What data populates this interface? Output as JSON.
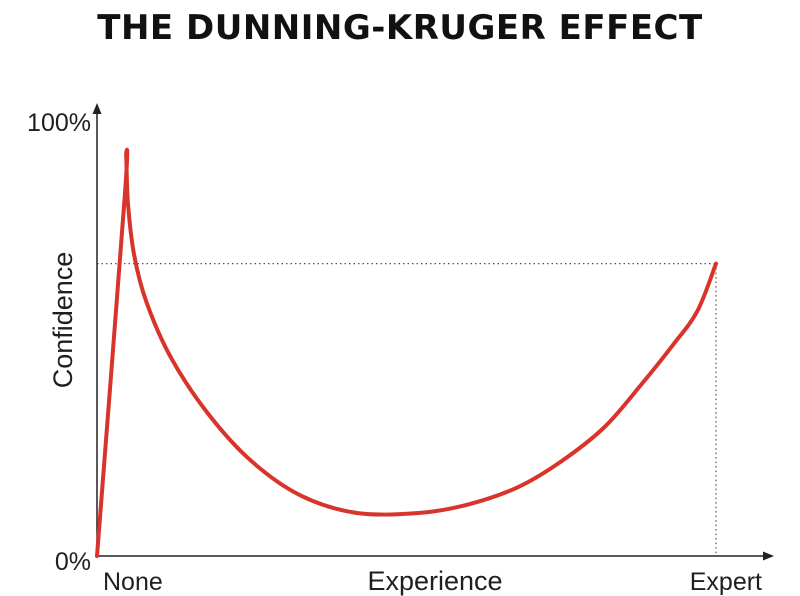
{
  "title": "THE DUNNING-KRUGER EFFECT",
  "chart_data": {
    "type": "line",
    "title": "THE DUNNING-KRUGER EFFECT",
    "xlabel": "Experience",
    "ylabel": "Confidence",
    "x_tick_labels": [
      "None",
      "Expert"
    ],
    "y_tick_labels": [
      "0%",
      "100%"
    ],
    "xlim": [
      0,
      1
    ],
    "ylim": [
      0,
      100
    ],
    "grid": false,
    "reference_lines": {
      "style": "dotted",
      "at_point": [
        1.0,
        68
      ]
    },
    "series": [
      {
        "color": "#d9342b",
        "x": [
          0,
          0.045,
          0.047,
          0.05,
          0.06,
          0.08,
          0.12,
          0.18,
          0.25,
          0.33,
          0.42,
          0.52,
          0.6,
          0.68,
          0.75,
          0.82,
          0.88,
          0.93,
          0.97,
          1.0
        ],
        "y": [
          0,
          84,
          93,
          82,
          70,
          59,
          46,
          33,
          22,
          14,
          10,
          10,
          12,
          16,
          22,
          30,
          40,
          49,
          57,
          68
        ]
      }
    ]
  }
}
